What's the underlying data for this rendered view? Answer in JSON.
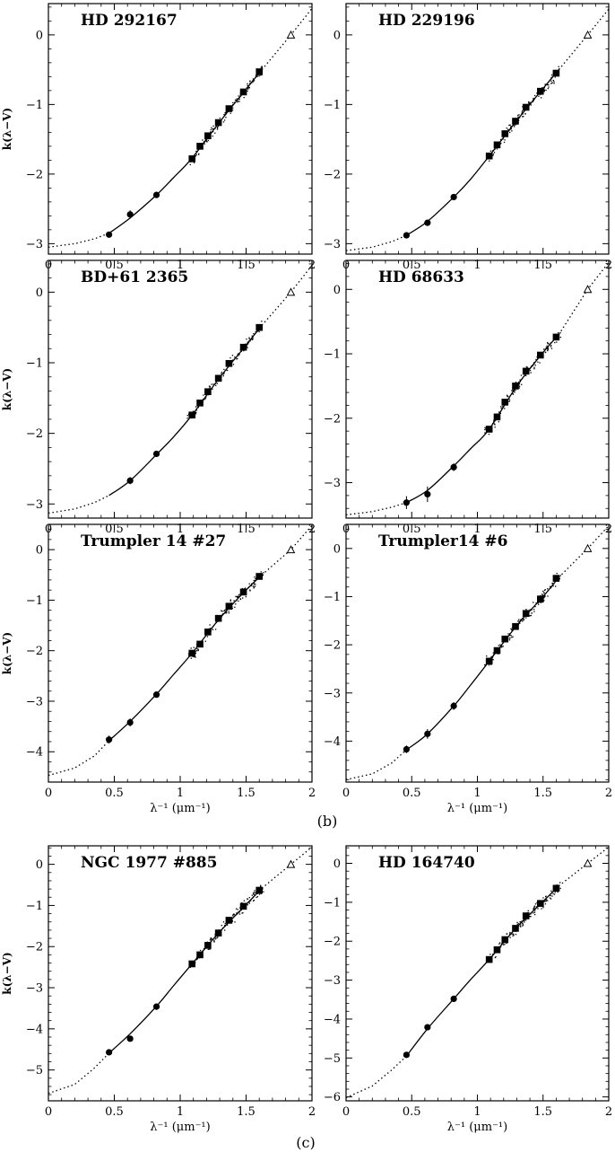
{
  "figure": {
    "panel_labels": [
      "(b)",
      "(c)"
    ],
    "ylabel": "k(λ−V)",
    "xlabel": "λ⁻¹ (μm⁻¹)",
    "xticks": [
      0,
      0.5,
      1,
      1.5,
      2
    ],
    "xtick_labels": [
      "0",
      "0.5",
      "1",
      "1.5",
      "2"
    ]
  },
  "chart_data": [
    {
      "type": "scatter",
      "title": "HD 292167",
      "xlabel": "",
      "ylabel": "k(λ−V)",
      "xlim": [
        0,
        2
      ],
      "ylim": [
        -3.15,
        0.45
      ],
      "yticks": [
        0,
        -1,
        -2,
        -3
      ],
      "circles": [
        [
          0.46,
          -2.87
        ],
        [
          0.62,
          -2.58
        ],
        [
          0.82,
          -2.3
        ]
      ],
      "circle_err": [
        0.03,
        0.06,
        0.03
      ],
      "squares": [
        [
          1.09,
          -1.78
        ],
        [
          1.15,
          -1.6
        ],
        [
          1.21,
          -1.45
        ],
        [
          1.29,
          -1.26
        ],
        [
          1.37,
          -1.06
        ],
        [
          1.48,
          -0.82
        ],
        [
          1.6,
          -0.53
        ]
      ],
      "triangle": [
        1.84,
        0
      ],
      "ir_curve": [
        [
          0,
          -3.05
        ],
        [
          0.2,
          -3.0
        ],
        [
          0.35,
          -2.93
        ],
        [
          0.46,
          -2.85
        ],
        [
          0.62,
          -2.63
        ],
        [
          0.82,
          -2.3
        ],
        [
          0.95,
          -2.05
        ],
        [
          1.09,
          -1.77
        ],
        [
          1.3,
          -1.25
        ],
        [
          1.5,
          -0.78
        ],
        [
          1.62,
          -0.5
        ]
      ],
      "extension": [
        [
          1.62,
          -0.5
        ],
        [
          1.84,
          0
        ],
        [
          2.0,
          0.38
        ]
      ],
      "scatter_box": [
        1.07,
        1.62
      ]
    },
    {
      "type": "scatter",
      "title": "HD 229196",
      "xlabel": "",
      "ylabel": "",
      "xlim": [
        0,
        2
      ],
      "ylim": [
        -3.15,
        0.45
      ],
      "yticks": [
        0,
        -1,
        -2,
        -3
      ],
      "circles": [
        [
          0.46,
          -2.88
        ],
        [
          0.62,
          -2.7
        ],
        [
          0.82,
          -2.33
        ]
      ],
      "circle_err": [
        0.03,
        0.03,
        0.03
      ],
      "squares": [
        [
          1.09,
          -1.74
        ],
        [
          1.15,
          -1.58
        ],
        [
          1.21,
          -1.42
        ],
        [
          1.29,
          -1.24
        ],
        [
          1.37,
          -1.04
        ],
        [
          1.48,
          -0.81
        ],
        [
          1.6,
          -0.55
        ]
      ],
      "triangle": [
        1.84,
        0
      ],
      "ir_curve": [
        [
          0,
          -3.1
        ],
        [
          0.2,
          -3.05
        ],
        [
          0.35,
          -2.97
        ],
        [
          0.46,
          -2.88
        ],
        [
          0.62,
          -2.68
        ],
        [
          0.82,
          -2.33
        ],
        [
          0.95,
          -2.07
        ],
        [
          1.09,
          -1.74
        ],
        [
          1.3,
          -1.23
        ],
        [
          1.5,
          -0.77
        ],
        [
          1.62,
          -0.5
        ]
      ],
      "extension": [
        [
          1.62,
          -0.5
        ],
        [
          1.84,
          0
        ],
        [
          2.0,
          0.37
        ]
      ],
      "scatter_box": [
        1.08,
        1.62
      ]
    },
    {
      "type": "scatter",
      "title": "BD+61 2365",
      "xlabel": "",
      "ylabel": "k(λ−V)",
      "xlim": [
        0,
        2
      ],
      "ylim": [
        -3.2,
        0.45
      ],
      "yticks": [
        0,
        -1,
        -2,
        -3
      ],
      "circles": [
        [
          0.62,
          -2.67
        ],
        [
          0.82,
          -2.29
        ]
      ],
      "circle_err": [
        0.05,
        0.03
      ],
      "squares": [
        [
          1.09,
          -1.74
        ],
        [
          1.15,
          -1.57
        ],
        [
          1.21,
          -1.41
        ],
        [
          1.29,
          -1.22
        ],
        [
          1.37,
          -1.01
        ],
        [
          1.48,
          -0.78
        ],
        [
          1.6,
          -0.5
        ]
      ],
      "triangle": [
        1.84,
        0
      ],
      "ir_curve": [
        [
          0,
          -3.13
        ],
        [
          0.2,
          -3.07
        ],
        [
          0.35,
          -2.98
        ],
        [
          0.46,
          -2.88
        ],
        [
          0.62,
          -2.67
        ],
        [
          0.82,
          -2.3
        ],
        [
          0.95,
          -2.05
        ],
        [
          1.09,
          -1.74
        ],
        [
          1.3,
          -1.21
        ],
        [
          1.5,
          -0.75
        ],
        [
          1.62,
          -0.47
        ]
      ],
      "extension": [
        [
          1.62,
          -0.47
        ],
        [
          1.84,
          0
        ],
        [
          2.0,
          0.38
        ]
      ],
      "scatter_box": [
        1.05,
        1.63
      ]
    },
    {
      "type": "scatter",
      "title": "HD 68633",
      "xlabel": "",
      "ylabel": "",
      "xlim": [
        0,
        2
      ],
      "ylim": [
        -3.55,
        0.45
      ],
      "yticks": [
        0,
        -1,
        -2,
        -3
      ],
      "circles": [
        [
          0.46,
          -3.31
        ],
        [
          0.62,
          -3.18
        ],
        [
          0.82,
          -2.76
        ]
      ],
      "circle_err": [
        0.1,
        0.12,
        0.06
      ],
      "squares": [
        [
          1.09,
          -2.17
        ],
        [
          1.15,
          -1.98
        ],
        [
          1.21,
          -1.75
        ],
        [
          1.29,
          -1.5
        ],
        [
          1.37,
          -1.27
        ],
        [
          1.48,
          -1.02
        ],
        [
          1.6,
          -0.74
        ]
      ],
      "triangle": [
        1.84,
        0
      ],
      "ir_curve": [
        [
          0,
          -3.5
        ],
        [
          0.2,
          -3.45
        ],
        [
          0.35,
          -3.38
        ],
        [
          0.46,
          -3.31
        ],
        [
          0.62,
          -3.12
        ],
        [
          0.82,
          -2.74
        ],
        [
          0.95,
          -2.47
        ],
        [
          1.09,
          -2.17
        ],
        [
          1.3,
          -1.5
        ],
        [
          1.5,
          -0.98
        ],
        [
          1.62,
          -0.7
        ]
      ],
      "extension": [
        [
          1.62,
          -0.7
        ],
        [
          1.84,
          0
        ],
        [
          2.0,
          0.42
        ]
      ],
      "scatter_box": [
        1.05,
        1.63
      ]
    },
    {
      "type": "scatter",
      "title": "Trumpler 14 #27",
      "xlabel": "",
      "ylabel": "k(λ−V)",
      "xlim": [
        0,
        2
      ],
      "ylim": [
        -4.6,
        0.5
      ],
      "yticks": [
        0,
        -1,
        -2,
        -3,
        -4
      ],
      "circles": [
        [
          0.46,
          -3.76
        ],
        [
          0.62,
          -3.42
        ],
        [
          0.82,
          -2.87
        ]
      ],
      "circle_err": [
        0.08,
        0.08,
        0.05
      ],
      "squares": [
        [
          1.09,
          -2.05
        ],
        [
          1.15,
          -1.87
        ],
        [
          1.21,
          -1.63
        ],
        [
          1.29,
          -1.36
        ],
        [
          1.37,
          -1.12
        ],
        [
          1.48,
          -0.84
        ],
        [
          1.6,
          -0.53
        ]
      ],
      "triangle": [
        1.84,
        0
      ],
      "ir_curve": [
        [
          0,
          -4.47
        ],
        [
          0.2,
          -4.32
        ],
        [
          0.35,
          -4.08
        ],
        [
          0.46,
          -3.78
        ],
        [
          0.62,
          -3.4
        ],
        [
          0.82,
          -2.86
        ],
        [
          0.95,
          -2.47
        ],
        [
          1.09,
          -2.05
        ],
        [
          1.3,
          -1.36
        ],
        [
          1.5,
          -0.8
        ],
        [
          1.62,
          -0.5
        ]
      ],
      "extension": [
        [
          1.62,
          -0.5
        ],
        [
          1.84,
          0
        ],
        [
          2.0,
          0.48
        ]
      ],
      "scatter_box": [
        1.05,
        1.63
      ]
    },
    {
      "type": "scatter",
      "title": "Trumpler14 #6",
      "xlabel": "",
      "ylabel": "",
      "xlim": [
        0,
        2
      ],
      "ylim": [
        -4.85,
        0.5
      ],
      "yticks": [
        0,
        -1,
        -2,
        -3,
        -4
      ],
      "circles": [
        [
          0.46,
          -4.17
        ],
        [
          0.62,
          -3.85
        ],
        [
          0.82,
          -3.27
        ]
      ],
      "circle_err": [
        0.08,
        0.1,
        0.08
      ],
      "squares": [
        [
          1.09,
          -2.34
        ],
        [
          1.15,
          -2.12
        ],
        [
          1.21,
          -1.88
        ],
        [
          1.29,
          -1.62
        ],
        [
          1.37,
          -1.35
        ],
        [
          1.48,
          -1.05
        ],
        [
          1.6,
          -0.62
        ]
      ],
      "triangle": [
        1.84,
        0
      ],
      "ir_curve": [
        [
          0,
          -4.8
        ],
        [
          0.2,
          -4.68
        ],
        [
          0.35,
          -4.45
        ],
        [
          0.46,
          -4.18
        ],
        [
          0.62,
          -3.85
        ],
        [
          0.82,
          -3.27
        ],
        [
          0.95,
          -2.83
        ],
        [
          1.09,
          -2.34
        ],
        [
          1.3,
          -1.6
        ],
        [
          1.5,
          -1.0
        ],
        [
          1.62,
          -0.6
        ]
      ],
      "extension": [
        [
          1.62,
          -0.6
        ],
        [
          1.84,
          0
        ],
        [
          2.0,
          0.47
        ]
      ],
      "scatter_box": [
        1.05,
        1.63
      ]
    },
    {
      "type": "scatter",
      "title": "NGC 1977 #885",
      "xlabel": "λ⁻¹ (μm⁻¹)",
      "ylabel": "k(λ−V)",
      "xlim": [
        0,
        2
      ],
      "ylim": [
        -5.75,
        0.45
      ],
      "yticks": [
        0,
        -1,
        -2,
        -3,
        -4,
        -5
      ],
      "circles": [
        [
          0.46,
          -4.57
        ],
        [
          0.62,
          -4.24
        ],
        [
          0.82,
          -3.46
        ]
      ],
      "circle_err": [
        0.05,
        0.05,
        0.05
      ],
      "squares": [
        [
          1.09,
          -2.42
        ],
        [
          1.15,
          -2.2
        ],
        [
          1.21,
          -1.97
        ],
        [
          1.29,
          -1.67
        ],
        [
          1.37,
          -1.36
        ],
        [
          1.48,
          -1.02
        ],
        [
          1.6,
          -0.63
        ]
      ],
      "triangle": [
        1.84,
        0
      ],
      "ir_curve": [
        [
          0,
          -5.57
        ],
        [
          0.2,
          -5.35
        ],
        [
          0.35,
          -4.95
        ],
        [
          0.46,
          -4.59
        ],
        [
          0.62,
          -4.12
        ],
        [
          0.82,
          -3.45
        ],
        [
          0.95,
          -2.95
        ],
        [
          1.09,
          -2.42
        ],
        [
          1.3,
          -1.64
        ],
        [
          1.5,
          -0.98
        ],
        [
          1.62,
          -0.58
        ]
      ],
      "extension": [
        [
          1.62,
          -0.58
        ],
        [
          1.84,
          0
        ],
        [
          2.0,
          0.42
        ]
      ],
      "scatter_box": [
        1.07,
        1.63
      ]
    },
    {
      "type": "scatter",
      "title": "HD 164740",
      "xlabel": "λ⁻¹ (μm⁻¹)",
      "ylabel": "",
      "xlim": [
        0,
        2
      ],
      "ylim": [
        -6.1,
        0.45
      ],
      "yticks": [
        0,
        -1,
        -2,
        -3,
        -4,
        -5,
        -6
      ],
      "circles": [
        [
          0.46,
          -4.92
        ],
        [
          0.62,
          -4.21
        ],
        [
          0.82,
          -3.48
        ]
      ],
      "circle_err": [
        0.04,
        0.04,
        0.04
      ],
      "squares": [
        [
          1.09,
          -2.47
        ],
        [
          1.15,
          -2.22
        ],
        [
          1.21,
          -1.96
        ],
        [
          1.29,
          -1.67
        ],
        [
          1.37,
          -1.35
        ],
        [
          1.48,
          -1.03
        ],
        [
          1.6,
          -0.64
        ]
      ],
      "triangle": [
        1.84,
        0
      ],
      "ir_curve": [
        [
          0,
          -6.02
        ],
        [
          0.2,
          -5.72
        ],
        [
          0.35,
          -5.3
        ],
        [
          0.46,
          -4.95
        ],
        [
          0.62,
          -4.25
        ],
        [
          0.82,
          -3.48
        ],
        [
          0.95,
          -2.98
        ],
        [
          1.09,
          -2.47
        ],
        [
          1.3,
          -1.64
        ],
        [
          1.5,
          -0.98
        ],
        [
          1.62,
          -0.58
        ]
      ],
      "extension": [
        [
          1.62,
          -0.58
        ],
        [
          1.84,
          0
        ],
        [
          2.0,
          0.42
        ]
      ],
      "scatter_box": [
        1.08,
        1.63
      ]
    }
  ]
}
